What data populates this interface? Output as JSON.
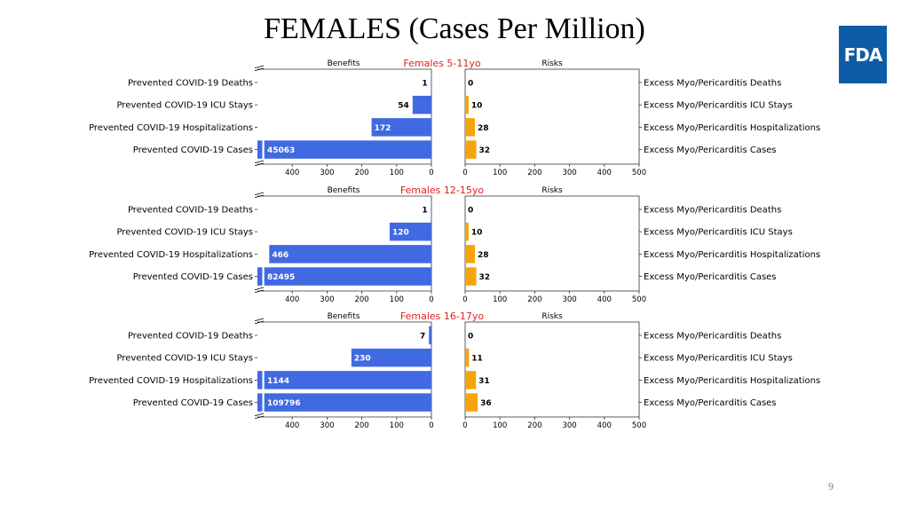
{
  "slide": {
    "title": "FEMALES (Cases Per Million)",
    "logo_text": "FDA",
    "page_number": "9"
  },
  "colors": {
    "benefit": "#4169e1",
    "risk": "#f5a50b",
    "panel_title": "#e02020"
  },
  "chart_data": [
    {
      "type": "bar",
      "title": "Females 5-11yo",
      "left_title": "Benefits",
      "right_title": "Risks",
      "left_categories": [
        "Prevented COVID-19 Deaths",
        "Prevented COVID-19 ICU Stays",
        "Prevented COVID-19 Hospitalizations",
        "Prevented COVID-19 Cases"
      ],
      "right_categories": [
        "Excess Myo/Pericarditis Deaths",
        "Excess Myo/Pericarditis ICU Stays",
        "Excess Myo/Pericarditis Hospitalizations",
        "Excess Myo/Pericarditis Cases"
      ],
      "benefits": [
        1,
        54,
        172,
        45063
      ],
      "risks": [
        0,
        10,
        28,
        32
      ],
      "benefit_ticks": [
        400,
        300,
        200,
        100,
        0
      ],
      "risk_ticks": [
        0,
        100,
        200,
        300,
        400,
        500
      ],
      "xlim": [
        0,
        500
      ],
      "axis_break": true
    },
    {
      "type": "bar",
      "title": "Females 12-15yo",
      "left_title": "Benefits",
      "right_title": "Risks",
      "left_categories": [
        "Prevented COVID-19 Deaths",
        "Prevented COVID-19 ICU Stays",
        "Prevented COVID-19 Hospitalizations",
        "Prevented COVID-19 Cases"
      ],
      "right_categories": [
        "Excess Myo/Pericarditis Deaths",
        "Excess Myo/Pericarditis ICU Stays",
        "Excess Myo/Pericarditis Hospitalizations",
        "Excess Myo/Pericarditis Cases"
      ],
      "benefits": [
        1,
        120,
        466,
        82495
      ],
      "risks": [
        0,
        10,
        28,
        32
      ],
      "benefit_ticks": [
        400,
        300,
        200,
        100,
        0
      ],
      "risk_ticks": [
        0,
        100,
        200,
        300,
        400,
        500
      ],
      "xlim": [
        0,
        500
      ],
      "axis_break": true
    },
    {
      "type": "bar",
      "title": "Females 16-17yo",
      "left_title": "Benefits",
      "right_title": "Risks",
      "left_categories": [
        "Prevented COVID-19 Deaths",
        "Prevented COVID-19 ICU Stays",
        "Prevented COVID-19 Hospitalizations",
        "Prevented COVID-19 Cases"
      ],
      "right_categories": [
        "Excess Myo/Pericarditis Deaths",
        "Excess Myo/Pericarditis ICU Stays",
        "Excess Myo/Pericarditis Hospitalizations",
        "Excess Myo/Pericarditis Cases"
      ],
      "benefits": [
        7,
        230,
        1144,
        109796
      ],
      "risks": [
        0,
        11,
        31,
        36
      ],
      "benefit_ticks": [
        400,
        300,
        200,
        100,
        0
      ],
      "risk_ticks": [
        0,
        100,
        200,
        300,
        400,
        500
      ],
      "xlim": [
        0,
        500
      ],
      "axis_break": true
    }
  ]
}
